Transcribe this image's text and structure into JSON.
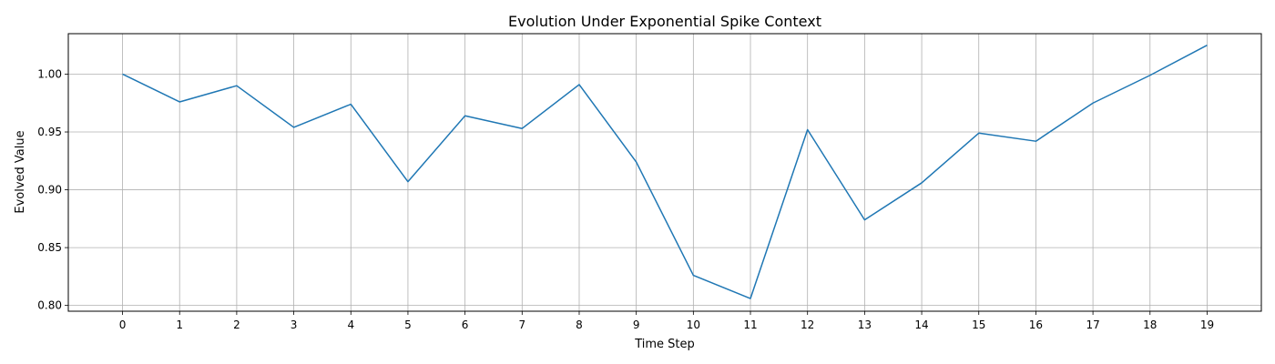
{
  "chart_data": {
    "type": "line",
    "title": "Evolution Under Exponential Spike Context",
    "xlabel": "Time Step",
    "ylabel": "Evolved Value",
    "x": [
      0,
      1,
      2,
      3,
      4,
      5,
      6,
      7,
      8,
      9,
      10,
      11,
      12,
      13,
      14,
      15,
      16,
      17,
      18,
      19
    ],
    "series": [
      {
        "values": [
          1.0,
          0.976,
          0.99,
          0.954,
          0.974,
          0.907,
          0.964,
          0.953,
          0.991,
          0.924,
          0.826,
          0.806,
          0.952,
          0.874,
          0.906,
          0.949,
          0.942,
          0.975,
          0.999,
          1.025
        ],
        "color": "#1f77b4"
      }
    ],
    "xticks": [
      "0",
      "1",
      "2",
      "3",
      "4",
      "5",
      "6",
      "7",
      "8",
      "9",
      "10",
      "11",
      "12",
      "13",
      "14",
      "15",
      "16",
      "17",
      "18",
      "19"
    ],
    "yticks": [
      0.8,
      0.85,
      0.9,
      0.95,
      1.0
    ],
    "ytick_labels": [
      "0.80",
      "0.85",
      "0.90",
      "0.95",
      "1.00"
    ],
    "xlim": [
      -0.95,
      19.95
    ],
    "ylim": [
      0.795,
      1.035
    ],
    "grid": true,
    "legend": "none"
  }
}
